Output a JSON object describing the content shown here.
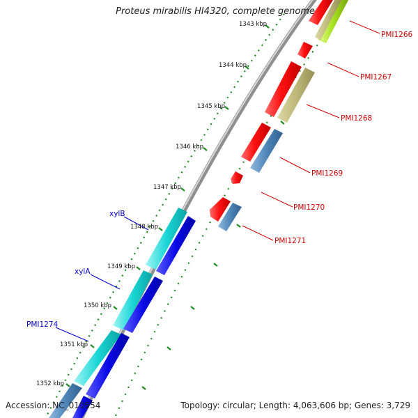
{
  "title": "Proteus mirabilis HI4320, complete genome",
  "footer": {
    "accession": "Accession: NC_010554",
    "topology": "Topology: circular; Length: 4,063,606 bp; Genes: 3,729"
  },
  "scale_labels": [
    {
      "text": "1343 kbp"
    },
    {
      "text": "1344 kbp"
    },
    {
      "text": "1345 kbp"
    },
    {
      "text": "1346 kbp"
    },
    {
      "text": "1347 kbp"
    },
    {
      "text": "1348 kbp"
    },
    {
      "text": "1349 kbp"
    },
    {
      "text": "1350 kbp"
    },
    {
      "text": "1351 kbp"
    },
    {
      "text": "1352 kbp"
    }
  ],
  "gene_labels_right": [
    {
      "text": "PMI1266"
    },
    {
      "text": "PMI1267"
    },
    {
      "text": "PMI1268"
    },
    {
      "text": "PMI1269"
    },
    {
      "text": "PMI1270"
    },
    {
      "text": "PMI1271"
    }
  ],
  "gene_labels_left": [
    {
      "text": "xylB"
    },
    {
      "text": "xylA"
    },
    {
      "text": "PMI1274"
    }
  ],
  "colors": {
    "red_feature": "#ff1010",
    "olive_feature": "#bfb87a",
    "steel_feature": "#4f86b8",
    "cyan_feature": "#1ad6d6",
    "blue_feature": "#0a0ae6",
    "lime_feature": "#a8e020",
    "backbone": "#8f8f8f",
    "tick": "#1f8a1f",
    "label_red": "#cc0000",
    "label_blue": "#0000cc"
  }
}
